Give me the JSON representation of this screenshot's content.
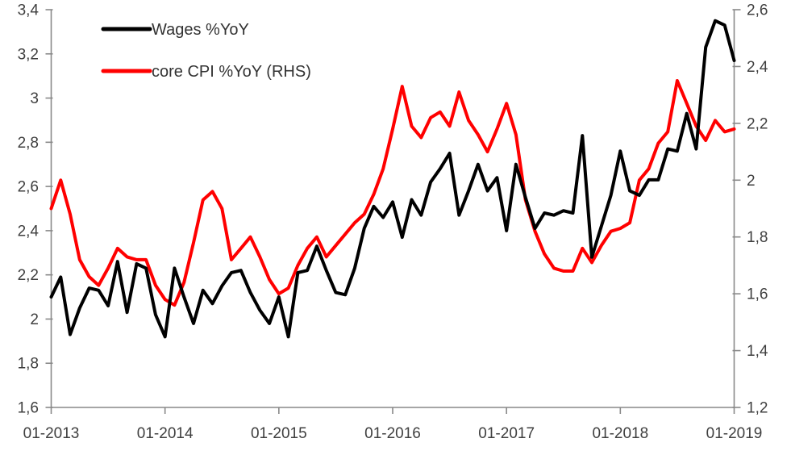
{
  "chart_data": {
    "type": "line",
    "title": "",
    "xlabel": "",
    "ylabel_left": "",
    "ylabel_right": "",
    "grid": false,
    "background": "#ffffff",
    "legend_position": "top-left",
    "decimal_separator": ",",
    "x_frequency": "monthly",
    "x_tick_labels": [
      "01-2013",
      "01-2014",
      "01-2015",
      "01-2016",
      "01-2017",
      "01-2018",
      "01-2019"
    ],
    "x_tick_month_index": [
      0,
      12,
      24,
      36,
      48,
      60,
      72
    ],
    "months": [
      "01-2013",
      "02-2013",
      "03-2013",
      "04-2013",
      "05-2013",
      "06-2013",
      "07-2013",
      "08-2013",
      "09-2013",
      "10-2013",
      "11-2013",
      "12-2013",
      "01-2014",
      "02-2014",
      "03-2014",
      "04-2014",
      "05-2014",
      "06-2014",
      "07-2014",
      "08-2014",
      "09-2014",
      "10-2014",
      "11-2014",
      "12-2014",
      "01-2015",
      "02-2015",
      "03-2015",
      "04-2015",
      "05-2015",
      "06-2015",
      "07-2015",
      "08-2015",
      "09-2015",
      "10-2015",
      "11-2015",
      "12-2015",
      "01-2016",
      "02-2016",
      "03-2016",
      "04-2016",
      "05-2016",
      "06-2016",
      "07-2016",
      "08-2016",
      "09-2016",
      "10-2016",
      "11-2016",
      "12-2016",
      "01-2017",
      "02-2017",
      "03-2017",
      "04-2017",
      "05-2017",
      "06-2017",
      "07-2017",
      "08-2017",
      "09-2017",
      "10-2017",
      "11-2017",
      "12-2017",
      "01-2018",
      "02-2018",
      "03-2018",
      "04-2018",
      "05-2018",
      "06-2018",
      "07-2018",
      "08-2018",
      "09-2018",
      "10-2018",
      "11-2018",
      "12-2018",
      "01-2019"
    ],
    "left_axis": {
      "min": 1.6,
      "max": 3.4,
      "tick_step": 0.2,
      "tick_labels": [
        "1,6",
        "1,8",
        "2",
        "2,2",
        "2,4",
        "2,6",
        "2,8",
        "3",
        "3,2",
        "3,4"
      ]
    },
    "right_axis": {
      "min": 1.2,
      "max": 2.6,
      "tick_step": 0.2,
      "tick_labels": [
        "1,2",
        "1,4",
        "1,6",
        "1,8",
        "2",
        "2,2",
        "2,4",
        "2,6"
      ]
    },
    "series": [
      {
        "name": "Wages %YoY",
        "axis": "left",
        "color": "#000000",
        "values": [
          2.1,
          2.19,
          1.93,
          2.05,
          2.14,
          2.13,
          2.06,
          2.26,
          2.03,
          2.25,
          2.23,
          2.02,
          1.92,
          2.23,
          2.1,
          1.98,
          2.13,
          2.07,
          2.15,
          2.21,
          2.22,
          2.12,
          2.04,
          1.98,
          2.1,
          1.92,
          2.21,
          2.22,
          2.33,
          2.22,
          2.12,
          2.11,
          2.23,
          2.41,
          2.51,
          2.46,
          2.53,
          2.37,
          2.54,
          2.47,
          2.62,
          2.68,
          2.75,
          2.47,
          2.58,
          2.7,
          2.58,
          2.64,
          2.4,
          2.7,
          2.55,
          2.41,
          2.48,
          2.47,
          2.49,
          2.48,
          2.83,
          2.28,
          2.42,
          2.56,
          2.76,
          2.58,
          2.56,
          2.63,
          2.63,
          2.77,
          2.76,
          2.93,
          2.77,
          3.23,
          3.35,
          3.33,
          3.17
        ]
      },
      {
        "name": "core CPI %YoY (RHS)",
        "axis": "right",
        "color": "#ff0000",
        "values": [
          1.9,
          2.0,
          1.88,
          1.72,
          1.66,
          1.63,
          1.69,
          1.76,
          1.73,
          1.72,
          1.72,
          1.63,
          1.58,
          1.56,
          1.64,
          1.78,
          1.93,
          1.96,
          1.9,
          1.72,
          1.76,
          1.8,
          1.73,
          1.65,
          1.6,
          1.62,
          1.7,
          1.76,
          1.8,
          1.73,
          1.77,
          1.81,
          1.85,
          1.88,
          1.95,
          2.04,
          2.18,
          2.33,
          2.19,
          2.15,
          2.22,
          2.24,
          2.19,
          2.31,
          2.21,
          2.16,
          2.1,
          2.18,
          2.27,
          2.16,
          1.93,
          1.82,
          1.74,
          1.69,
          1.68,
          1.68,
          1.76,
          1.71,
          1.77,
          1.82,
          1.83,
          1.85,
          2.0,
          2.04,
          2.13,
          2.17,
          2.35,
          2.27,
          2.19,
          2.14,
          2.21,
          2.17,
          2.18
        ]
      }
    ]
  },
  "legend": {
    "items": [
      {
        "label": "Wages %YoY",
        "color": "#000000"
      },
      {
        "label": "core CPI %YoY (RHS)",
        "color": "#ff0000"
      }
    ]
  },
  "colors": {
    "wages_line": "#000000",
    "core_cpi_line": "#ff0000",
    "axis_line": "#898989",
    "tick_text": "#3f3f3f",
    "legend_text": "#333333",
    "background": "#ffffff"
  }
}
